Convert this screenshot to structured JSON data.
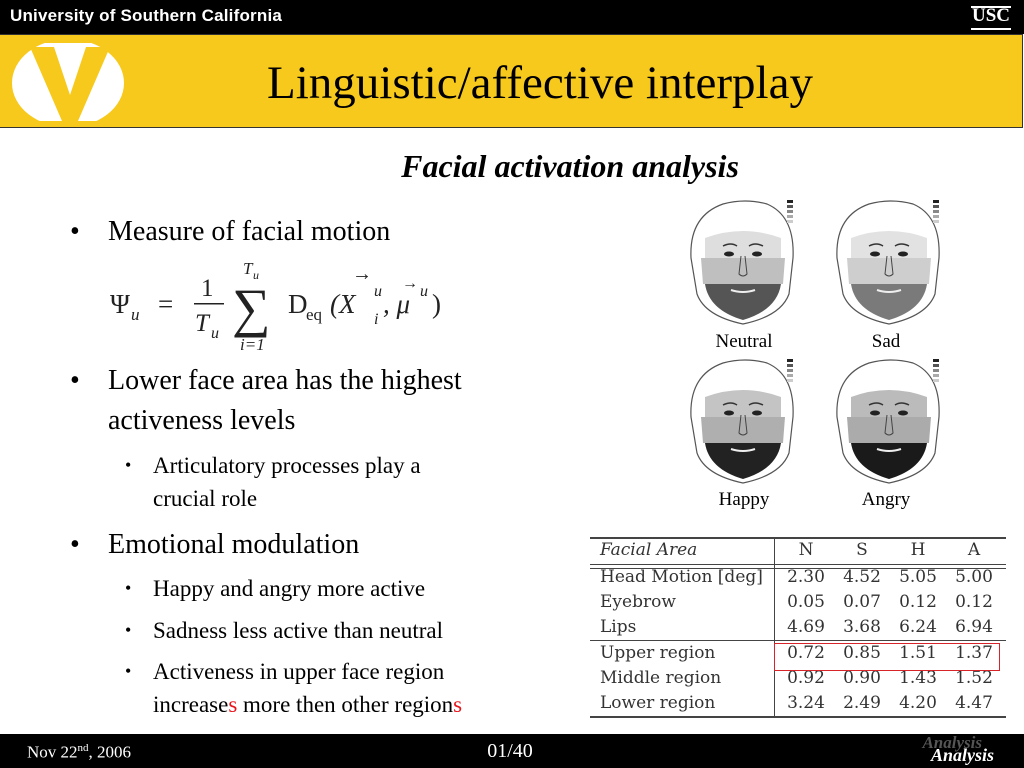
{
  "header": {
    "university": "University of Southern California",
    "logo_text": "USC"
  },
  "slide": {
    "title": "Linguistic/affective interplay",
    "subtitle": "Facial activation analysis"
  },
  "bullets": {
    "b1": "Measure of facial motion",
    "b2_line1": "Lower face area has the highest",
    "b2_line2": "activeness levels",
    "b2_sub1_line1": "Articulatory processes play a",
    "b2_sub1_line2": "crucial role",
    "b3": "Emotional modulation",
    "b3_sub1": "Happy and angry more active",
    "b3_sub2": "Sadness less active than neutral",
    "b3_sub3_line1": "Activeness in upper face region",
    "b3_sub3_line2_a": "increase",
    "b3_sub3_line2_b": "s",
    "b3_sub3_line2_c": " more then other region",
    "b3_sub3_line2_d": "s"
  },
  "formula": {
    "lhs": "Ψ",
    "lhs_sub": "u",
    "equals": "=",
    "numerator": "1",
    "denominator": "T",
    "denominator_sub": "u",
    "sum_top": "T",
    "sum_top_sub": "u",
    "sum_bottom": "i=1",
    "sigma": "∑",
    "func": "D",
    "func_sub": "eq",
    "args": "(X",
    "arg1_sup": "u",
    "arg1_sub": "i",
    "comma": ", μ",
    "arg2_sup": "u",
    "close": ")"
  },
  "faces": [
    {
      "label": "Neutral"
    },
    {
      "label": "Sad"
    },
    {
      "label": "Happy"
    },
    {
      "label": "Angry"
    }
  ],
  "table": {
    "header": [
      "Facial Area",
      "N",
      "S",
      "H",
      "A"
    ],
    "rows": [
      [
        "Head Motion [deg]",
        "2.30",
        "4.52",
        "5.05",
        "5.00"
      ],
      [
        "Eyebrow",
        "0.05",
        "0.07",
        "0.12",
        "0.12"
      ],
      [
        "Lips",
        "4.69",
        "3.68",
        "6.24",
        "6.94"
      ],
      [
        "Upper region",
        "0.72",
        "0.85",
        "1.51",
        "1.37"
      ],
      [
        "Middle region",
        "0.92",
        "0.90",
        "1.43",
        "1.52"
      ],
      [
        "Lower region",
        "3.24",
        "2.49",
        "4.20",
        "4.47"
      ]
    ]
  },
  "footer": {
    "date_pre": "Nov 22",
    "date_sup": "nd",
    "date_post": ", 2006",
    "page": "01/40",
    "section": "Analysis"
  },
  "colors": {
    "title_band": "#f7c91c",
    "bar": "#000000",
    "highlight": "#e8141b"
  }
}
